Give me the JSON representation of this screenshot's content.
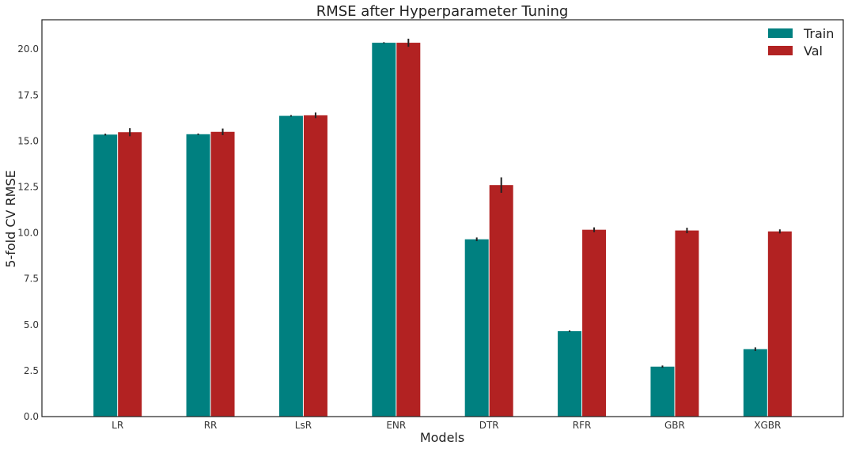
{
  "chart_data": {
    "type": "bar",
    "title": "RMSE after Hyperparameter Tuning",
    "xlabel": "Models",
    "ylabel": "5-fold CV RMSE",
    "categories": [
      "LR",
      "RR",
      "LsR",
      "ENR",
      "DTR",
      "RFR",
      "GBR",
      "XGBR"
    ],
    "series": [
      {
        "name": "Train",
        "color": "#008080",
        "values": [
          15.35,
          15.37,
          16.37,
          20.35,
          9.65,
          4.65,
          2.72,
          3.67
        ],
        "errors": [
          0.05,
          0.04,
          0.04,
          0.03,
          0.1,
          0.04,
          0.06,
          0.1
        ]
      },
      {
        "name": "Val",
        "color": "#b22222",
        "values": [
          15.48,
          15.5,
          16.4,
          20.35,
          12.6,
          10.17,
          10.13,
          10.08
        ],
        "errors": [
          0.22,
          0.18,
          0.15,
          0.22,
          0.42,
          0.13,
          0.15,
          0.11
        ]
      }
    ],
    "ylim": [
      0,
      21.6
    ],
    "yticks": [
      "0.0",
      "2.5",
      "5.0",
      "7.5",
      "10.0",
      "12.5",
      "15.0",
      "17.5",
      "20.0"
    ],
    "legend": "top-right",
    "grid": false
  }
}
